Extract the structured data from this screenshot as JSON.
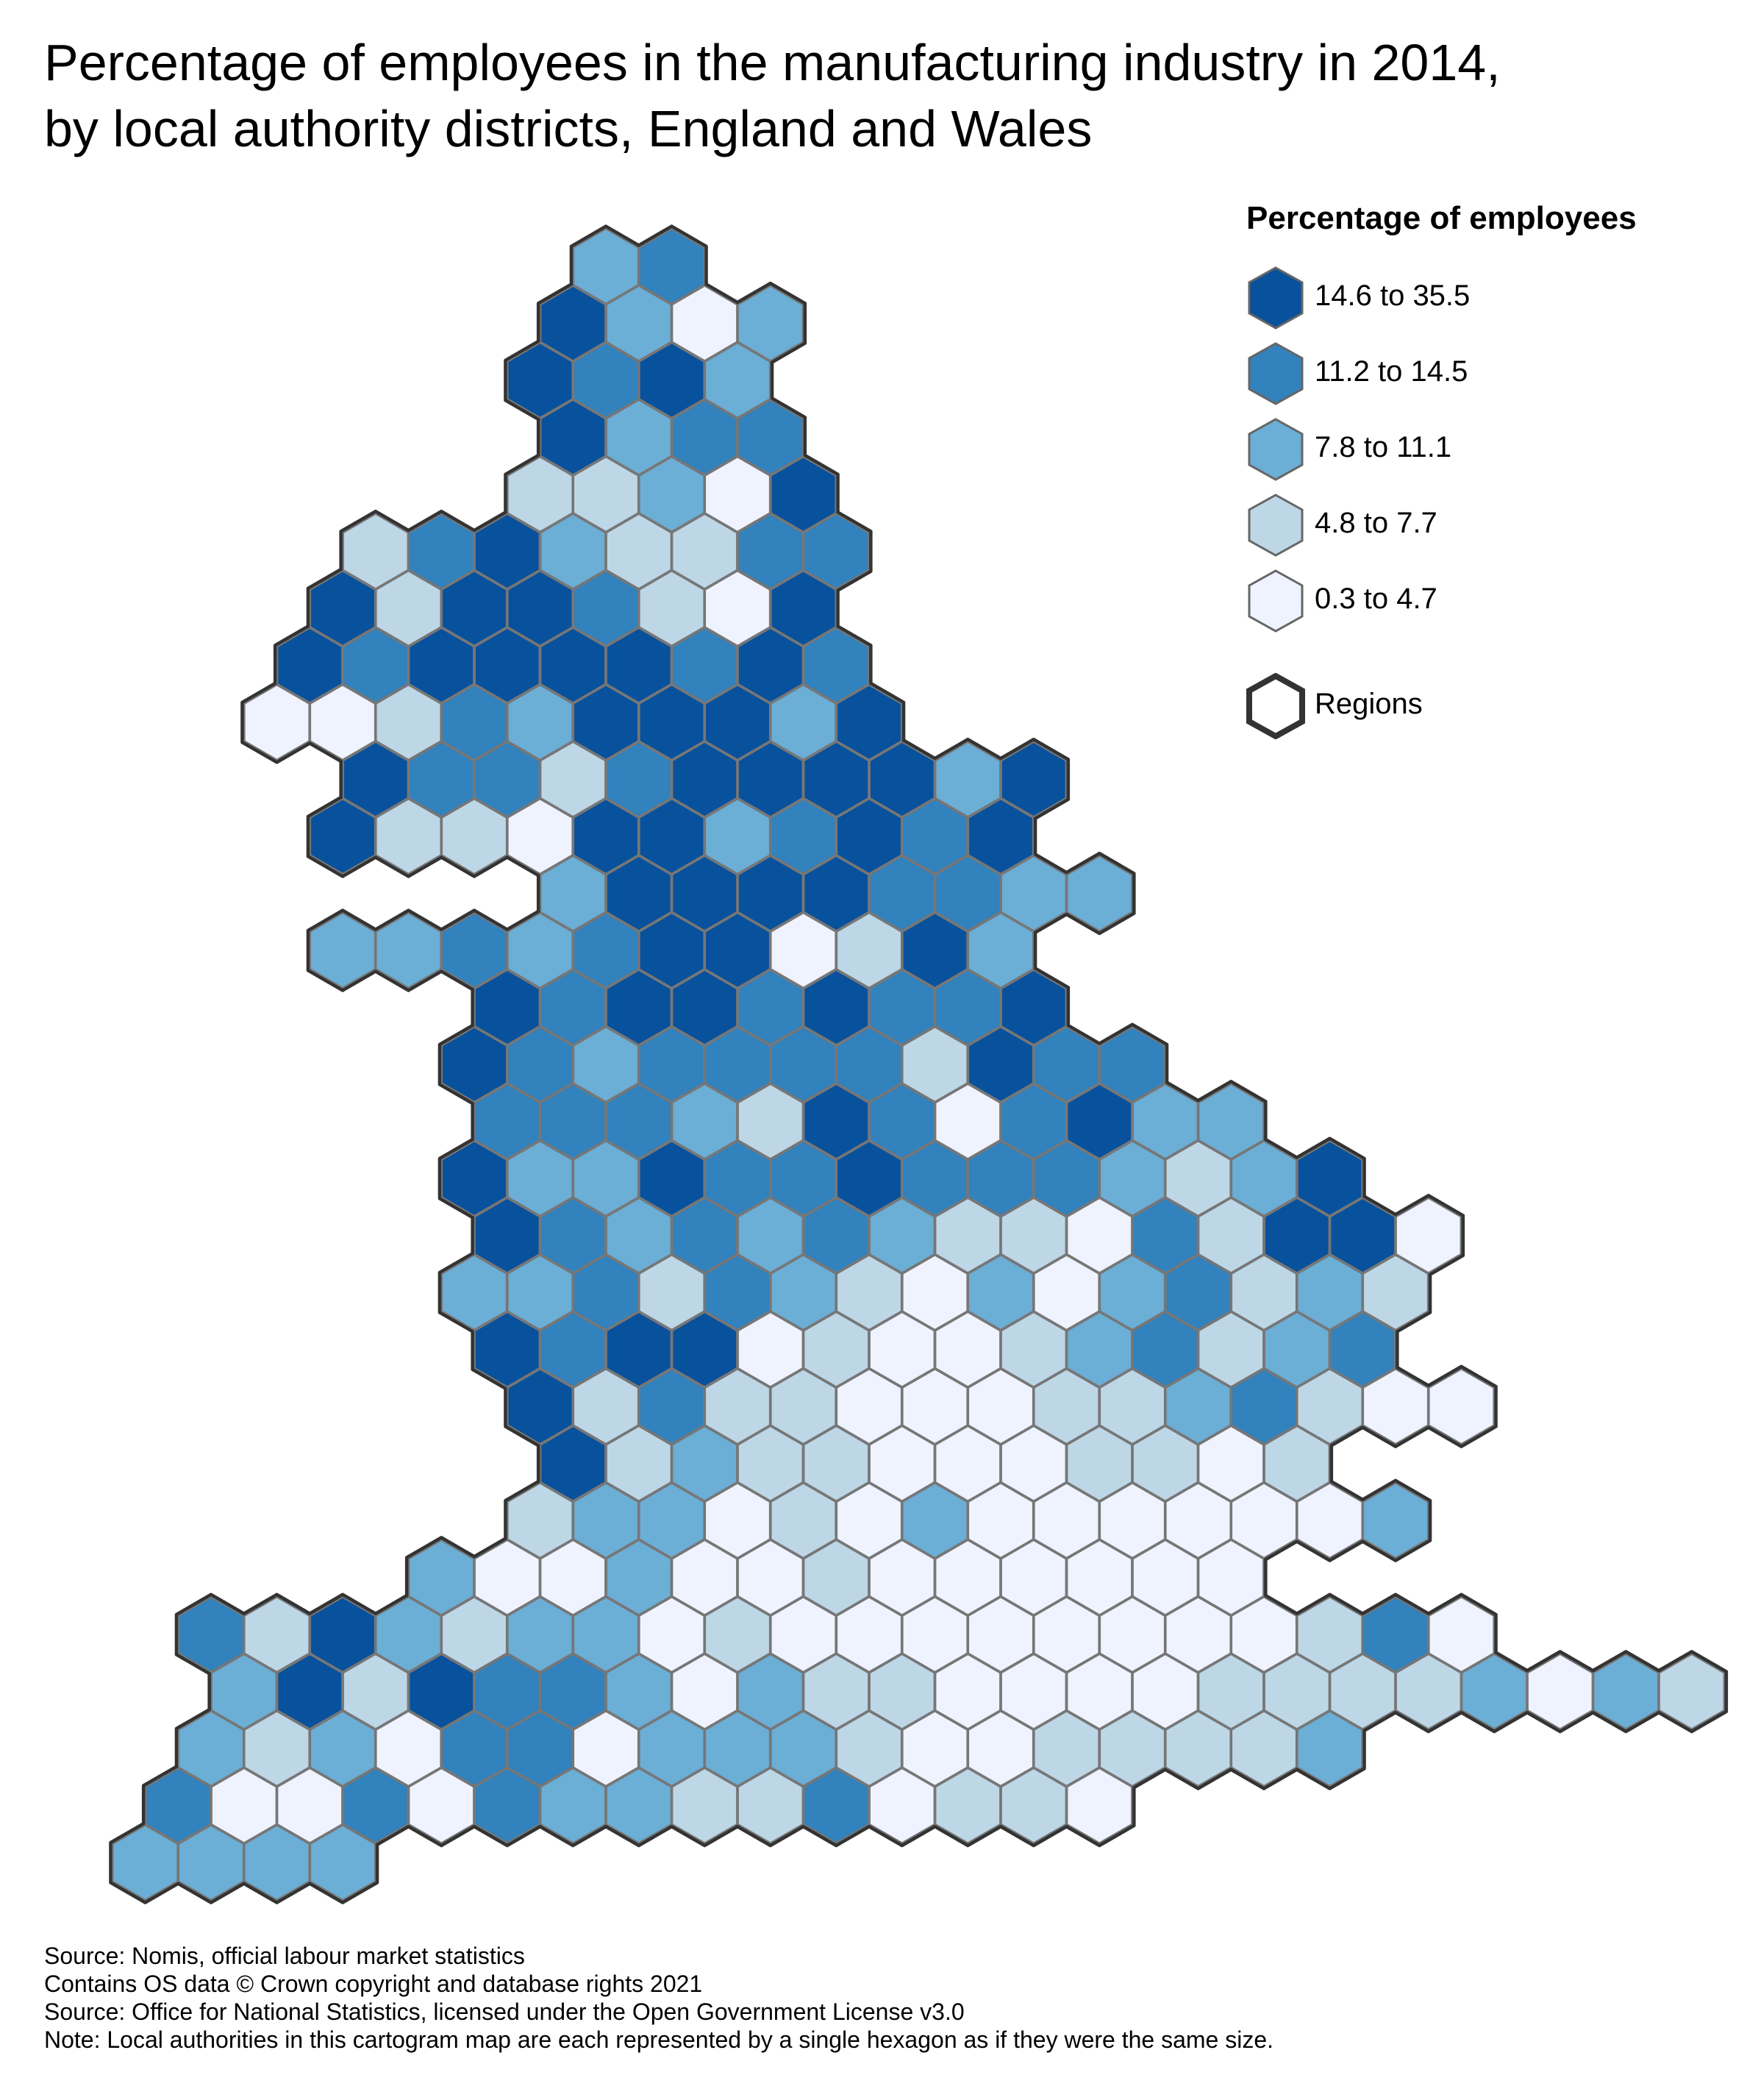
{
  "title_lines": [
    "Percentage of employees in the manufacturing industry in 2014,",
    "by local authority districts, England and Wales"
  ],
  "legend": {
    "title": "Percentage of employees",
    "classes": [
      {
        "label": "14.6 to 35.5",
        "color": "#08519c"
      },
      {
        "label": "11.2 to 14.5",
        "color": "#3182bd"
      },
      {
        "label": "7.8 to 11.1",
        "color": "#6baed6"
      },
      {
        "label": "4.8 to 7.7",
        "color": "#bdd7e7"
      },
      {
        "label": "0.3 to 4.7",
        "color": "#eff3ff"
      }
    ],
    "regions_label": "Regions",
    "region_border_color": "#333333"
  },
  "footer": [
    "Source: Nomis, official labour market statistics",
    "Contains OS data © Crown copyright and database rights 2021",
    "Source: Office for National Statistics, licensed under the Open Government License v3.0",
    "Note: Local authorities in this cartogram map are each represented by a single hexagon as if they were the same size."
  ],
  "map_data": {
    "type": "hex-cartogram",
    "cell_border_color": "#777777",
    "rows": [
      {
        "start": 8,
        "cells": [
          2,
          1
        ]
      },
      {
        "start": 7,
        "cells": [
          0,
          2,
          4,
          2
        ]
      },
      {
        "start": 7,
        "cells": [
          0,
          1,
          0,
          2
        ]
      },
      {
        "start": 7,
        "cells": [
          0,
          2,
          1,
          1
        ]
      },
      {
        "start": 7,
        "cells": [
          3,
          3,
          2,
          4,
          0
        ]
      },
      {
        "start": 4,
        "cells": [
          3,
          1,
          0,
          2,
          3,
          3,
          1,
          1
        ]
      },
      {
        "start": 4,
        "cells": [
          0,
          3,
          0,
          0,
          1,
          3,
          4,
          0
        ]
      },
      {
        "start": 3,
        "cells": [
          0,
          1,
          0,
          0,
          0,
          0,
          1,
          0,
          1
        ]
      },
      {
        "start": 3,
        "cells": [
          4,
          4,
          3,
          1,
          2,
          0,
          0,
          0,
          2,
          0
        ]
      },
      {
        "start": 4,
        "cells": [
          0,
          1,
          1,
          3,
          1,
          0,
          0,
          0,
          0,
          2,
          0
        ]
      },
      {
        "start": 4,
        "cells": [
          0,
          3,
          3,
          4,
          0,
          0,
          2,
          1,
          0,
          1,
          0
        ]
      },
      {
        "start": 7,
        "cells": [
          2,
          0,
          0,
          0,
          0,
          1,
          1,
          2,
          2
        ]
      },
      {
        "start": 4,
        "cells": [
          2,
          2,
          1,
          2,
          1,
          0,
          0,
          4,
          3,
          0,
          2
        ]
      },
      {
        "start": 6,
        "cells": [
          0,
          1,
          0,
          0,
          1,
          0,
          1,
          1,
          0
        ]
      },
      {
        "start": 6,
        "cells": [
          0,
          1,
          2,
          1,
          1,
          1,
          1,
          3,
          0,
          1,
          1
        ]
      },
      {
        "start": 6,
        "cells": [
          1,
          1,
          1,
          2,
          3,
          0,
          1,
          4,
          1,
          0,
          2,
          2
        ]
      },
      {
        "start": 6,
        "cells": [
          0,
          2,
          2,
          0,
          1,
          1,
          0,
          1,
          1,
          1,
          2,
          3,
          2,
          0
        ]
      },
      {
        "start": 6,
        "cells": [
          0,
          1,
          2,
          1,
          2,
          1,
          2,
          3,
          3,
          4,
          1,
          3,
          0,
          0,
          4
        ]
      },
      {
        "start": 6,
        "cells": [
          2,
          2,
          1,
          3,
          1,
          2,
          3,
          4,
          2,
          4,
          2,
          1,
          3,
          2,
          3
        ]
      },
      {
        "start": 6,
        "cells": [
          0,
          1,
          0,
          0,
          4,
          3,
          4,
          4,
          3,
          2,
          1,
          3,
          2,
          1
        ]
      },
      {
        "start": 7,
        "cells": [
          0,
          3,
          1,
          3,
          3,
          4,
          4,
          4,
          3,
          3,
          2,
          1,
          3,
          4,
          4
        ]
      },
      {
        "start": 7,
        "cells": [
          0,
          3,
          2,
          3,
          3,
          4,
          4,
          4,
          3,
          3,
          4,
          3
        ]
      },
      {
        "start": 7,
        "cells": [
          3,
          2,
          2,
          4,
          3,
          4,
          2,
          4,
          4,
          4,
          4,
          4,
          4,
          2
        ]
      },
      {
        "start": 5,
        "cells": [
          2,
          4,
          4,
          2,
          4,
          4,
          3,
          4,
          4,
          4,
          4,
          4,
          4
        ]
      },
      {
        "start": 2,
        "cells": [
          1,
          3,
          0,
          2,
          3,
          2,
          2,
          4,
          3,
          4,
          4,
          4,
          4,
          4,
          4,
          4,
          4,
          3,
          1,
          4
        ]
      },
      {
        "start": 2,
        "cells": [
          2,
          0,
          3,
          0,
          1,
          1,
          2,
          4,
          2,
          3,
          3,
          4,
          4,
          4,
          4,
          3,
          3,
          3,
          3,
          2,
          4,
          2,
          3
        ]
      },
      {
        "start": 2,
        "cells": [
          2,
          3,
          2,
          4,
          1,
          1,
          4,
          2,
          2,
          2,
          3,
          4,
          4,
          3,
          3,
          3,
          3,
          2
        ]
      },
      {
        "start": 1,
        "cells": [
          1,
          4,
          4,
          1,
          4,
          1,
          2,
          2,
          3,
          3,
          1,
          4,
          3,
          3,
          4
        ]
      },
      {
        "start": 1,
        "cells": [
          2,
          2,
          2,
          2
        ]
      }
    ]
  }
}
